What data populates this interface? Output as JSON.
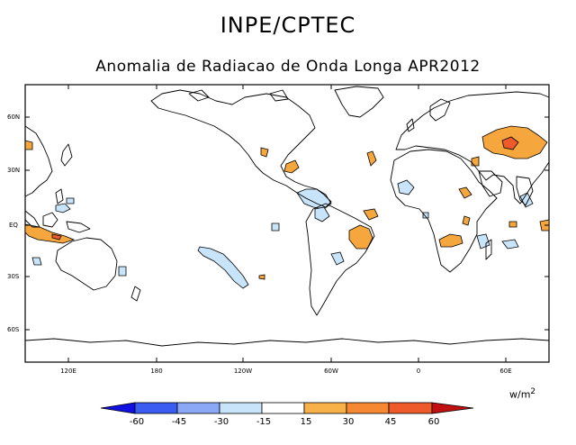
{
  "header": {
    "title": "INPE/CPTEC",
    "subtitle": "Anomalia de Radiacao de Onda Longa APR2012"
  },
  "axes": {
    "lat_ticks": [
      "60N",
      "30N",
      "EQ",
      "30S",
      "60S"
    ],
    "lon_ticks": [
      "120E",
      "180",
      "120W",
      "60W",
      "0",
      "60E"
    ]
  },
  "colorbar": {
    "units_base": "w/m",
    "units_exp": "2",
    "labels": [
      "-60",
      "-45",
      "-30",
      "-15",
      "15",
      "30",
      "45",
      "60"
    ],
    "colors": [
      "#1010e0",
      "#3a5cf0",
      "#8aa8f5",
      "#c8e4fb",
      "#ffffff",
      "#f8b048",
      "#f58830",
      "#ee5a2a",
      "#c01010"
    ]
  },
  "colors": {
    "positive_anomaly": "#f5a63c",
    "strong_positive_anomaly": "#ee5a2a",
    "negative_anomaly": "#c8e4fb",
    "land_outline": "#000000"
  }
}
